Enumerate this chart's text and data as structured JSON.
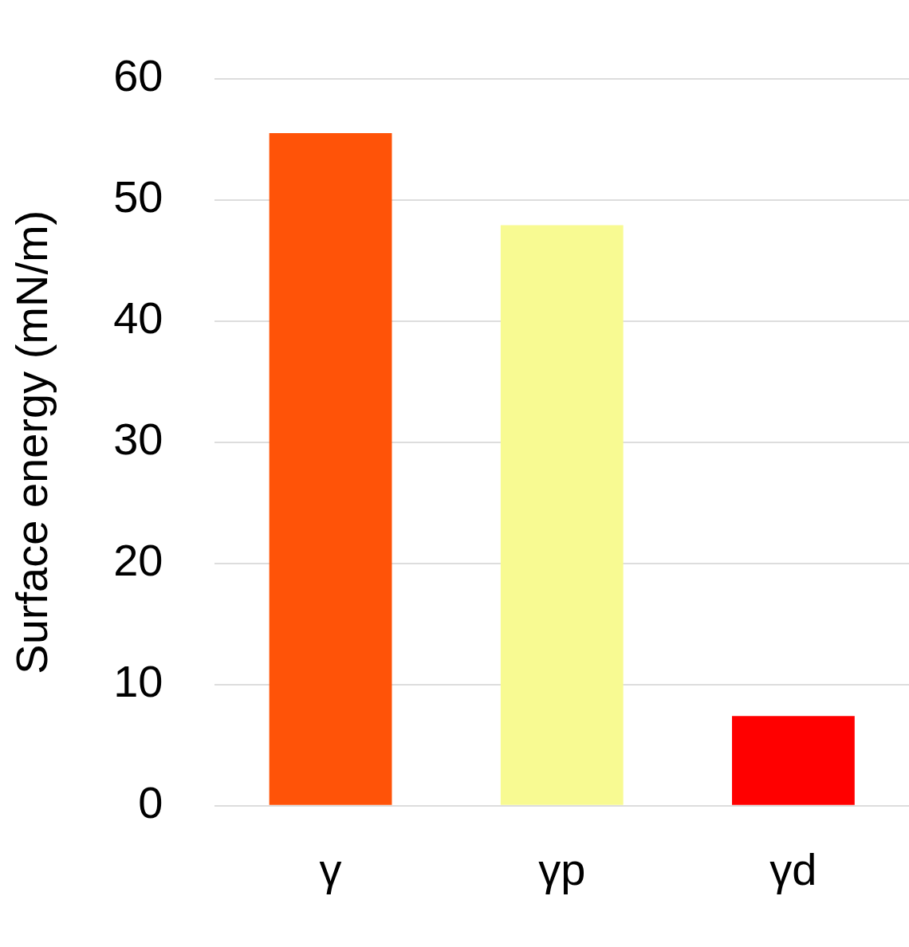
{
  "chart_data": {
    "type": "bar",
    "ylabel": "Surface energy (mN/m)",
    "categories": [
      "γ",
      "γp",
      "γd"
    ],
    "values": [
      55.5,
      47.9,
      7.4
    ],
    "colors": [
      "#ff5308",
      "#f8fa92",
      "#ff0000"
    ],
    "ylim": [
      0,
      60
    ],
    "yticks": [
      0,
      10,
      20,
      30,
      40,
      50,
      60
    ],
    "grid": "y"
  }
}
